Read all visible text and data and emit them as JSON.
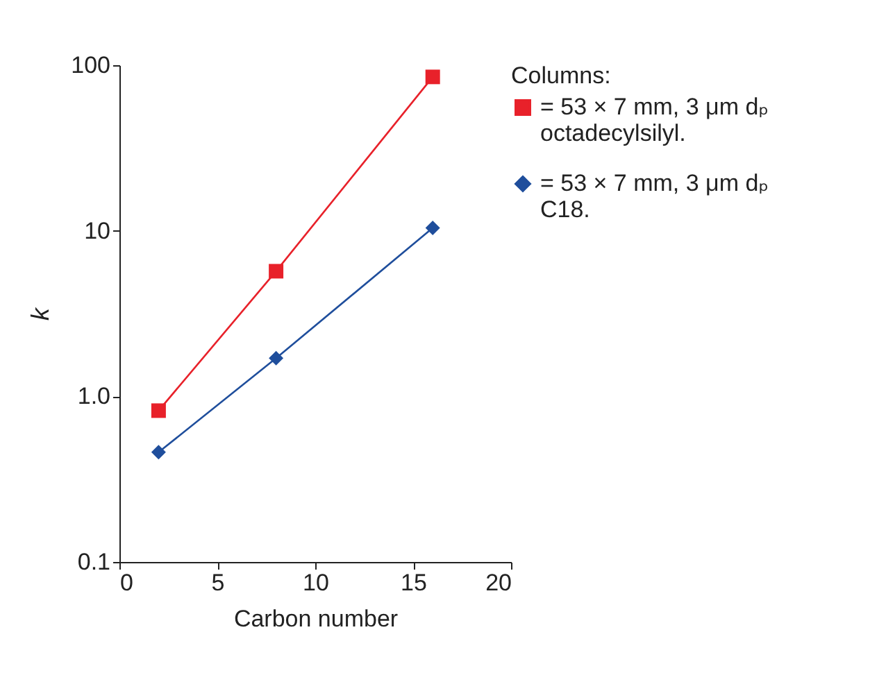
{
  "chart_data": {
    "type": "line",
    "xlabel": "Carbon number",
    "ylabel": "k",
    "legend_title": "Columns:",
    "log": "y",
    "xlim": [
      0,
      20
    ],
    "xticks": [
      0,
      5,
      10,
      15,
      20
    ],
    "ylim": [
      0.1,
      100
    ],
    "yticks": [
      0.1,
      {
        "value": 1,
        "label": "1.0"
      },
      10,
      100
    ],
    "grid": false,
    "legend": "right",
    "x": [
      2,
      8,
      16
    ],
    "series": [
      {
        "name": "= 53 × 7 mm, 3 μm dₚ\noctadecylsilyl.",
        "color": "#e8212a",
        "marker": "square",
        "values": [
          0.82,
          5.7,
          85
        ]
      },
      {
        "name": "= 53 × 7 mm, 3 μm dₚ\nC18.",
        "color": "#1f4e9c",
        "marker": "diamond",
        "values": [
          0.46,
          1.7,
          10.4
        ]
      }
    ]
  }
}
